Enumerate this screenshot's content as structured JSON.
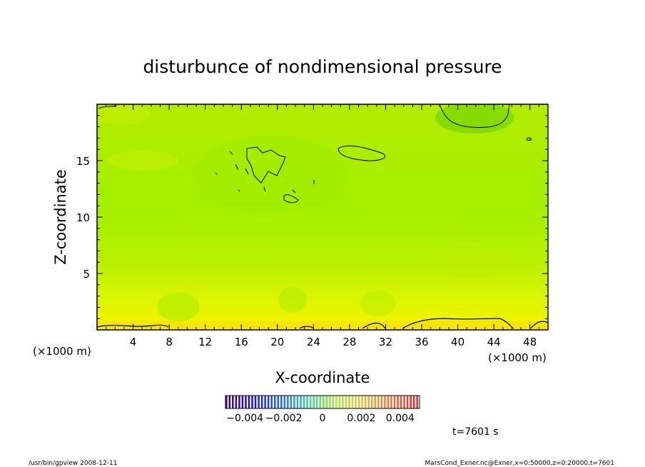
{
  "chart_data": {
    "type": "heatmap",
    "title": "disturbunce of nondimensional pressure",
    "xlabel": "X-coordinate",
    "ylabel": "Z-coordinate",
    "x_unit": "(×1000 m)",
    "y_unit": "(×1000 m)",
    "xlim": [
      0,
      50
    ],
    "ylim": [
      0,
      20
    ],
    "x_ticks": [
      4,
      8,
      12,
      16,
      20,
      24,
      28,
      32,
      36,
      40,
      44,
      48
    ],
    "y_ticks": [
      5,
      10,
      15
    ],
    "x_tick_labels": [
      "4",
      "8",
      "12",
      "16",
      "20",
      "24",
      "28",
      "32",
      "36",
      "40",
      "44",
      "48"
    ],
    "y_tick_labels": [
      "5",
      "10",
      "15"
    ],
    "colorbar": {
      "range": [
        -0.005,
        0.005
      ],
      "tick_labels": [
        "−0.004",
        "−0.002",
        "0",
        "0.002",
        "0.004"
      ],
      "ticks": [
        -0.004,
        -0.002,
        0,
        0.002,
        0.004
      ]
    },
    "time_label": "t=7601 s",
    "field_value_range": [
      0.0004,
      0.0032
    ],
    "colors": {
      "low": "#7cd400",
      "mid": "#a8f000",
      "high": "#e8f400",
      "highest": "#f4e000"
    }
  },
  "footer": {
    "left": "/usr/bin/gpview   2008-12-11",
    "right": "MarsCond_Exner.nc@Exner,x=0:50000,z=0:20000,t=7601"
  }
}
